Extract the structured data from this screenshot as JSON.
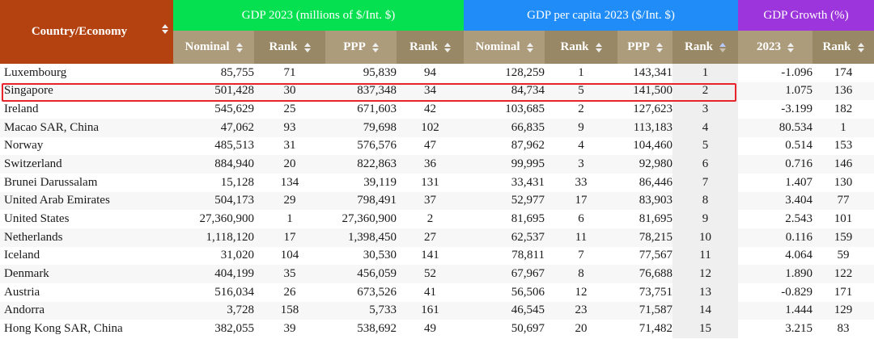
{
  "header": {
    "country": "Country/Economy",
    "gdp_group": "GDP 2023 (millions of $/Int. $)",
    "per_capita_group": "GDP per capita 2023 ($/Int. $)",
    "growth_group": "GDP Growth (%)",
    "sub": {
      "nominal": "Nominal",
      "rank": "Rank",
      "ppp": "PPP",
      "year": "2023"
    },
    "colors": {
      "country": "#b44210",
      "gdp": "#05e051",
      "per_capita": "#1f8cf7",
      "growth": "#9d35dc",
      "subheader": "#ad9c7c",
      "highlight": "#e8232a"
    },
    "sorted_column": "GDP per capita PPP Rank (ascending)"
  },
  "rows": [
    {
      "country": "Luxembourg",
      "gdp_nominal": "85,755",
      "gdp_nominal_rank": "71",
      "gdp_ppp": "95,839",
      "gdp_ppp_rank": "94",
      "pc_nominal": "128,259",
      "pc_nominal_rank": "1",
      "pc_ppp": "143,341",
      "pc_ppp_rank": "1",
      "growth": "-1.096",
      "growth_rank": "174"
    },
    {
      "country": "Singapore",
      "gdp_nominal": "501,428",
      "gdp_nominal_rank": "30",
      "gdp_ppp": "837,348",
      "gdp_ppp_rank": "34",
      "pc_nominal": "84,734",
      "pc_nominal_rank": "5",
      "pc_ppp": "141,500",
      "pc_ppp_rank": "2",
      "growth": "1.075",
      "growth_rank": "136"
    },
    {
      "country": "Ireland",
      "gdp_nominal": "545,629",
      "gdp_nominal_rank": "25",
      "gdp_ppp": "671,603",
      "gdp_ppp_rank": "42",
      "pc_nominal": "103,685",
      "pc_nominal_rank": "2",
      "pc_ppp": "127,623",
      "pc_ppp_rank": "3",
      "growth": "-3.199",
      "growth_rank": "182"
    },
    {
      "country": "Macao SAR, China",
      "gdp_nominal": "47,062",
      "gdp_nominal_rank": "93",
      "gdp_ppp": "79,698",
      "gdp_ppp_rank": "102",
      "pc_nominal": "66,835",
      "pc_nominal_rank": "9",
      "pc_ppp": "113,183",
      "pc_ppp_rank": "4",
      "growth": "80.534",
      "growth_rank": "1"
    },
    {
      "country": "Norway",
      "gdp_nominal": "485,513",
      "gdp_nominal_rank": "31",
      "gdp_ppp": "576,576",
      "gdp_ppp_rank": "47",
      "pc_nominal": "87,962",
      "pc_nominal_rank": "4",
      "pc_ppp": "104,460",
      "pc_ppp_rank": "5",
      "growth": "0.514",
      "growth_rank": "153"
    },
    {
      "country": "Switzerland",
      "gdp_nominal": "884,940",
      "gdp_nominal_rank": "20",
      "gdp_ppp": "822,863",
      "gdp_ppp_rank": "36",
      "pc_nominal": "99,995",
      "pc_nominal_rank": "3",
      "pc_ppp": "92,980",
      "pc_ppp_rank": "6",
      "growth": "0.716",
      "growth_rank": "146"
    },
    {
      "country": "Brunei Darussalam",
      "gdp_nominal": "15,128",
      "gdp_nominal_rank": "134",
      "gdp_ppp": "39,119",
      "gdp_ppp_rank": "131",
      "pc_nominal": "33,431",
      "pc_nominal_rank": "33",
      "pc_ppp": "86,446",
      "pc_ppp_rank": "7",
      "growth": "1.407",
      "growth_rank": "130"
    },
    {
      "country": "United Arab Emirates",
      "gdp_nominal": "504,173",
      "gdp_nominal_rank": "29",
      "gdp_ppp": "798,491",
      "gdp_ppp_rank": "37",
      "pc_nominal": "52,977",
      "pc_nominal_rank": "17",
      "pc_ppp": "83,903",
      "pc_ppp_rank": "8",
      "growth": "3.404",
      "growth_rank": "77"
    },
    {
      "country": "United States",
      "gdp_nominal": "27,360,900",
      "gdp_nominal_rank": "1",
      "gdp_ppp": "27,360,900",
      "gdp_ppp_rank": "2",
      "pc_nominal": "81,695",
      "pc_nominal_rank": "6",
      "pc_ppp": "81,695",
      "pc_ppp_rank": "9",
      "growth": "2.543",
      "growth_rank": "101"
    },
    {
      "country": "Netherlands",
      "gdp_nominal": "1,118,120",
      "gdp_nominal_rank": "17",
      "gdp_ppp": "1,398,450",
      "gdp_ppp_rank": "27",
      "pc_nominal": "62,537",
      "pc_nominal_rank": "11",
      "pc_ppp": "78,215",
      "pc_ppp_rank": "10",
      "growth": "0.116",
      "growth_rank": "159"
    },
    {
      "country": "Iceland",
      "gdp_nominal": "31,020",
      "gdp_nominal_rank": "104",
      "gdp_ppp": "30,530",
      "gdp_ppp_rank": "141",
      "pc_nominal": "78,811",
      "pc_nominal_rank": "7",
      "pc_ppp": "77,567",
      "pc_ppp_rank": "11",
      "growth": "4.064",
      "growth_rank": "59"
    },
    {
      "country": "Denmark",
      "gdp_nominal": "404,199",
      "gdp_nominal_rank": "35",
      "gdp_ppp": "456,059",
      "gdp_ppp_rank": "52",
      "pc_nominal": "67,967",
      "pc_nominal_rank": "8",
      "pc_ppp": "76,688",
      "pc_ppp_rank": "12",
      "growth": "1.890",
      "growth_rank": "122"
    },
    {
      "country": "Austria",
      "gdp_nominal": "516,034",
      "gdp_nominal_rank": "26",
      "gdp_ppp": "673,526",
      "gdp_ppp_rank": "41",
      "pc_nominal": "56,506",
      "pc_nominal_rank": "12",
      "pc_ppp": "73,751",
      "pc_ppp_rank": "13",
      "growth": "-0.829",
      "growth_rank": "171"
    },
    {
      "country": "Andorra",
      "gdp_nominal": "3,728",
      "gdp_nominal_rank": "158",
      "gdp_ppp": "5,733",
      "gdp_ppp_rank": "161",
      "pc_nominal": "46,545",
      "pc_nominal_rank": "23",
      "pc_ppp": "71,587",
      "pc_ppp_rank": "14",
      "growth": "1.444",
      "growth_rank": "129"
    },
    {
      "country": "Hong Kong SAR, China",
      "gdp_nominal": "382,055",
      "gdp_nominal_rank": "39",
      "gdp_ppp": "538,692",
      "gdp_ppp_rank": "49",
      "pc_nominal": "50,697",
      "pc_nominal_rank": "20",
      "pc_ppp": "71,482",
      "pc_ppp_rank": "15",
      "growth": "3.215",
      "growth_rank": "83"
    }
  ],
  "highlighted_row": "Singapore"
}
